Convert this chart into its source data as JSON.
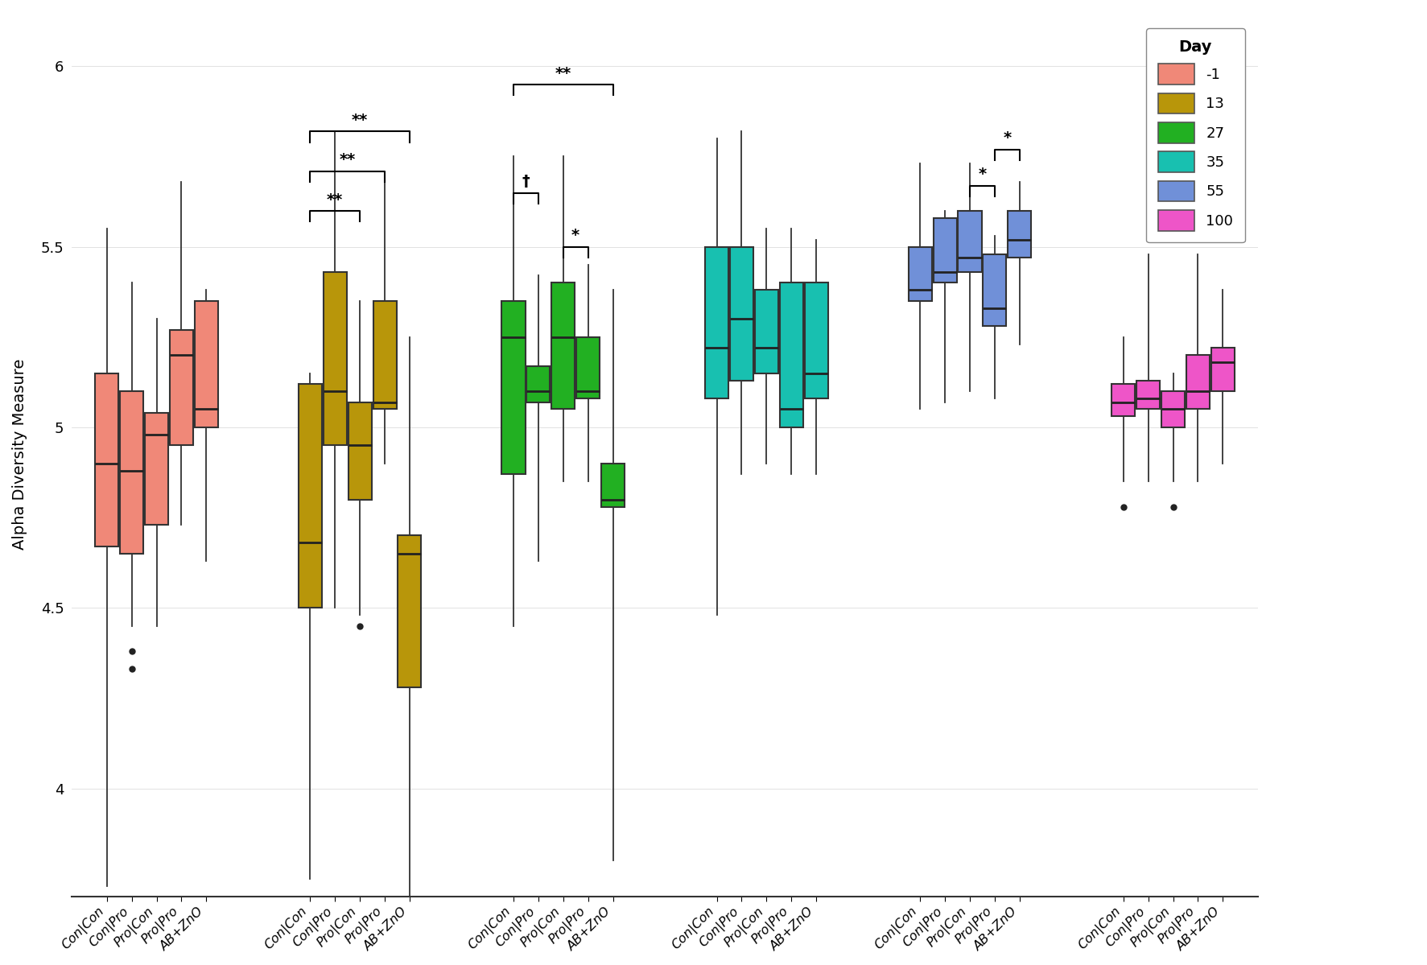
{
  "days": [
    -1,
    13,
    27,
    35,
    55,
    100
  ],
  "day_colors": {
    "-1": "#F08878",
    "13": "#B8960A",
    "27": "#22B022",
    "35": "#18C0B0",
    "55": "#7090D8",
    "100": "#EE55C8"
  },
  "treatments": [
    "Con|Con",
    "Con|Pro",
    "Pro|Con",
    "Pro|Pro",
    "AB+ZnO"
  ],
  "ylabel": "Alpha Diversity Measure",
  "ylim": [
    3.7,
    6.15
  ],
  "yticks": [
    4.0,
    4.5,
    5.0,
    5.5,
    6.0
  ],
  "boxes": {
    "day_-1": {
      "Con|Con": {
        "q1": 4.67,
        "median": 4.9,
        "q3": 5.15,
        "whislo": 3.73,
        "whishi": 5.55,
        "fliers": []
      },
      "Con|Pro": {
        "q1": 4.65,
        "median": 4.88,
        "q3": 5.1,
        "whislo": 4.45,
        "whishi": 5.4,
        "fliers": [
          4.33,
          4.38
        ]
      },
      "Pro|Con": {
        "q1": 4.73,
        "median": 4.98,
        "q3": 5.04,
        "whislo": 4.45,
        "whishi": 5.3,
        "fliers": []
      },
      "Pro|Pro": {
        "q1": 4.95,
        "median": 5.2,
        "q3": 5.27,
        "whislo": 4.73,
        "whishi": 5.68,
        "fliers": []
      },
      "AB+ZnO": {
        "q1": 5.0,
        "median": 5.05,
        "q3": 5.35,
        "whislo": 4.63,
        "whishi": 5.38,
        "fliers": []
      }
    },
    "day_13": {
      "Con|Con": {
        "q1": 4.5,
        "median": 4.68,
        "q3": 5.12,
        "whislo": 3.75,
        "whishi": 5.15,
        "fliers": []
      },
      "Con|Pro": {
        "q1": 4.95,
        "median": 5.1,
        "q3": 5.43,
        "whislo": 4.5,
        "whishi": 5.82,
        "fliers": []
      },
      "Pro|Con": {
        "q1": 4.8,
        "median": 4.95,
        "q3": 5.07,
        "whislo": 4.48,
        "whishi": 5.35,
        "fliers": [
          4.45
        ]
      },
      "Pro|Pro": {
        "q1": 5.05,
        "median": 5.07,
        "q3": 5.35,
        "whislo": 4.9,
        "whishi": 5.7,
        "fliers": []
      },
      "AB+ZnO": {
        "q1": 4.28,
        "median": 4.65,
        "q3": 4.7,
        "whislo": 3.62,
        "whishi": 5.25,
        "fliers": []
      }
    },
    "day_27": {
      "Con|Con": {
        "q1": 4.87,
        "median": 5.25,
        "q3": 5.35,
        "whislo": 4.45,
        "whishi": 5.75,
        "fliers": []
      },
      "Con|Pro": {
        "q1": 5.07,
        "median": 5.1,
        "q3": 5.17,
        "whislo": 4.63,
        "whishi": 5.42,
        "fliers": []
      },
      "Pro|Con": {
        "q1": 5.05,
        "median": 5.25,
        "q3": 5.4,
        "whislo": 4.85,
        "whishi": 5.75,
        "fliers": []
      },
      "Pro|Pro": {
        "q1": 5.08,
        "median": 5.1,
        "q3": 5.25,
        "whislo": 4.85,
        "whishi": 5.45,
        "fliers": []
      },
      "AB+ZnO": {
        "q1": 4.78,
        "median": 4.8,
        "q3": 4.9,
        "whislo": 3.8,
        "whishi": 5.38,
        "fliers": []
      }
    },
    "day_35": {
      "Con|Con": {
        "q1": 5.08,
        "median": 5.22,
        "q3": 5.5,
        "whislo": 4.48,
        "whishi": 5.8,
        "fliers": []
      },
      "Con|Pro": {
        "q1": 5.13,
        "median": 5.3,
        "q3": 5.5,
        "whislo": 4.87,
        "whishi": 5.82,
        "fliers": []
      },
      "Pro|Con": {
        "q1": 5.15,
        "median": 5.22,
        "q3": 5.38,
        "whislo": 4.9,
        "whishi": 5.55,
        "fliers": []
      },
      "Pro|Pro": {
        "q1": 5.0,
        "median": 5.05,
        "q3": 5.4,
        "whislo": 4.87,
        "whishi": 5.55,
        "fliers": []
      },
      "AB+ZnO": {
        "q1": 5.08,
        "median": 5.15,
        "q3": 5.4,
        "whislo": 4.87,
        "whishi": 5.52,
        "fliers": []
      }
    },
    "day_55": {
      "Con|Con": {
        "q1": 5.35,
        "median": 5.38,
        "q3": 5.5,
        "whislo": 5.05,
        "whishi": 5.73,
        "fliers": []
      },
      "Con|Pro": {
        "q1": 5.4,
        "median": 5.43,
        "q3": 5.58,
        "whislo": 5.07,
        "whishi": 5.6,
        "fliers": []
      },
      "Pro|Con": {
        "q1": 5.43,
        "median": 5.47,
        "q3": 5.6,
        "whislo": 5.1,
        "whishi": 5.73,
        "fliers": []
      },
      "Pro|Pro": {
        "q1": 5.28,
        "median": 5.33,
        "q3": 5.48,
        "whislo": 5.08,
        "whishi": 5.53,
        "fliers": []
      },
      "AB+ZnO": {
        "q1": 5.47,
        "median": 5.52,
        "q3": 5.6,
        "whislo": 5.23,
        "whishi": 5.68,
        "fliers": []
      }
    },
    "day_100": {
      "Con|Con": {
        "q1": 5.03,
        "median": 5.07,
        "q3": 5.12,
        "whislo": 4.85,
        "whishi": 5.25,
        "fliers": [
          4.78
        ]
      },
      "Con|Pro": {
        "q1": 5.05,
        "median": 5.08,
        "q3": 5.13,
        "whislo": 4.85,
        "whishi": 5.48,
        "fliers": []
      },
      "Pro|Con": {
        "q1": 5.0,
        "median": 5.05,
        "q3": 5.1,
        "whislo": 4.85,
        "whishi": 5.15,
        "fliers": [
          4.78
        ]
      },
      "Pro|Pro": {
        "q1": 5.05,
        "median": 5.1,
        "q3": 5.2,
        "whislo": 4.85,
        "whishi": 5.48,
        "fliers": []
      },
      "AB+ZnO": {
        "q1": 5.1,
        "median": 5.18,
        "q3": 5.22,
        "whislo": 4.9,
        "whishi": 5.38,
        "fliers": []
      }
    }
  }
}
